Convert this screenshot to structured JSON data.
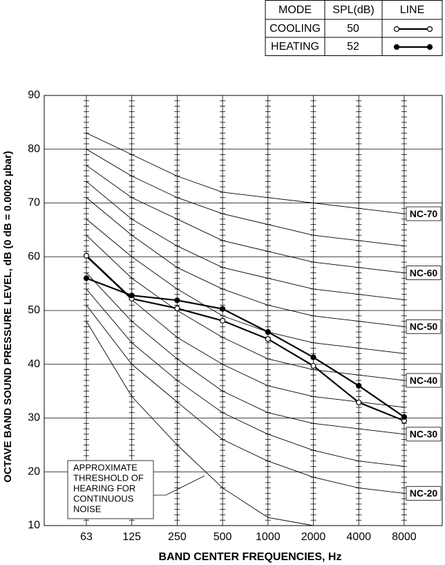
{
  "chart_data": {
    "type": "line",
    "x_label": "BAND CENTER FREQUENCIES, Hz",
    "y_label": "OCTAVE BAND SOUND PRESSURE LEVEL, dB (0 dB = 0.0002 µbar)",
    "categories": [
      "63",
      "125",
      "250",
      "500",
      "1000",
      "2000",
      "4000",
      "8000"
    ],
    "ylim": [
      10,
      90
    ],
    "yticks": [
      10,
      20,
      30,
      40,
      50,
      60,
      70,
      80,
      90
    ],
    "minor_ticks": 1,
    "grid": true,
    "legend_headers": [
      "MODE",
      "SPL(dB)",
      "LINE"
    ],
    "series": [
      {
        "name": "COOLING",
        "spl": 50,
        "color": "#000000",
        "marker_fill": "#ffffff",
        "values": [
          60.2,
          52.2,
          50.4,
          48.1,
          44.7,
          39.7,
          32.9,
          29.5
        ]
      },
      {
        "name": "HEATING",
        "spl": 52,
        "color": "#000000",
        "marker_fill": "#000000",
        "values": [
          56.0,
          52.8,
          51.9,
          50.3,
          46.0,
          41.3,
          36.0,
          30.2
        ]
      }
    ],
    "reference_curves": [
      {
        "name": "NC-70",
        "values": [
          83,
          79,
          75,
          72,
          71,
          70,
          69,
          68
        ]
      },
      {
        "values": [
          80,
          75,
          71,
          68,
          66,
          64,
          63,
          62
        ]
      },
      {
        "name": "NC-60",
        "values": [
          77,
          71,
          67,
          63,
          61,
          59,
          58,
          57
        ]
      },
      {
        "values": [
          74,
          67,
          62,
          58,
          56,
          54,
          53,
          52
        ]
      },
      {
        "name": "NC-50",
        "values": [
          71,
          64,
          58,
          54,
          51,
          49,
          48,
          47
        ]
      },
      {
        "values": [
          67,
          60,
          54,
          49,
          46,
          44,
          43,
          42
        ]
      },
      {
        "name": "NC-40",
        "values": [
          64,
          56,
          50,
          45,
          41,
          39,
          38,
          37
        ]
      },
      {
        "values": [
          60,
          52,
          45,
          40,
          36,
          34,
          33,
          32
        ]
      },
      {
        "name": "NC-30",
        "values": [
          57,
          48,
          41,
          35,
          31,
          29,
          28,
          27
        ]
      },
      {
        "values": [
          54,
          44,
          37,
          31,
          27,
          24,
          22,
          21
        ]
      },
      {
        "name": "NC-20",
        "values": [
          51,
          40,
          33,
          26,
          22,
          19,
          17,
          16
        ]
      },
      {
        "values": [
          48,
          34,
          25,
          17,
          11.5,
          10,
          null,
          null
        ]
      }
    ],
    "annotation": [
      "APPROXIMATE",
      "THRESHOLD OF",
      "HEARING FOR",
      "CONTINUOUS",
      "NOISE"
    ]
  }
}
